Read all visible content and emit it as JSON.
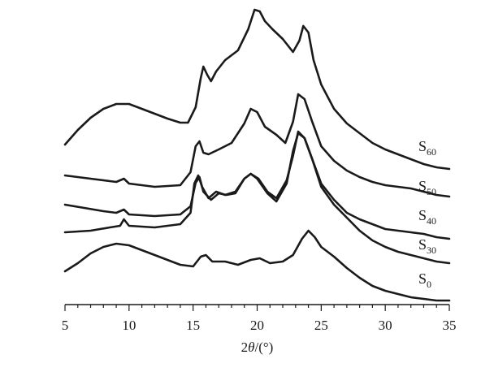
{
  "chart_data": {
    "type": "line",
    "title": "",
    "xlabel_parts": [
      "2",
      "θ",
      "/(°)"
    ],
    "ylabel": "",
    "xlim": [
      5,
      35
    ],
    "xticks": [
      5,
      10,
      15,
      20,
      25,
      30,
      35
    ],
    "minor_tick_step": 1,
    "grid": false,
    "legend": "inline labels at right end of each curve",
    "series": [
      {
        "label_base": "S",
        "label_sub": "60",
        "points": [
          [
            5,
            178
          ],
          [
            6,
            160
          ],
          [
            7,
            145
          ],
          [
            8,
            134
          ],
          [
            9,
            128
          ],
          [
            10,
            128
          ],
          [
            11,
            134
          ],
          [
            12,
            140
          ],
          [
            13,
            146
          ],
          [
            14,
            151
          ],
          [
            14.6,
            151
          ],
          [
            15.2,
            132
          ],
          [
            15.6,
            96
          ],
          [
            15.8,
            82
          ],
          [
            16.1,
            92
          ],
          [
            16.4,
            100
          ],
          [
            16.8,
            88
          ],
          [
            17.5,
            74
          ],
          [
            18.5,
            62
          ],
          [
            19.3,
            36
          ],
          [
            19.8,
            12
          ],
          [
            20.2,
            14
          ],
          [
            20.6,
            26
          ],
          [
            21.2,
            36
          ],
          [
            22,
            48
          ],
          [
            22.8,
            64
          ],
          [
            23.3,
            50
          ],
          [
            23.6,
            32
          ],
          [
            24,
            40
          ],
          [
            24.4,
            74
          ],
          [
            25,
            104
          ],
          [
            26,
            134
          ],
          [
            27,
            152
          ],
          [
            28,
            164
          ],
          [
            29,
            176
          ],
          [
            30,
            184
          ],
          [
            31,
            190
          ],
          [
            32,
            196
          ],
          [
            33,
            202
          ],
          [
            34,
            206
          ],
          [
            35,
            208
          ]
        ]
      },
      {
        "label_base": "S",
        "label_sub": "50",
        "points": [
          [
            5,
            216
          ],
          [
            7,
            220
          ],
          [
            9,
            224
          ],
          [
            9.6,
            220
          ],
          [
            10,
            226
          ],
          [
            12,
            230
          ],
          [
            14,
            228
          ],
          [
            14.8,
            212
          ],
          [
            15.2,
            180
          ],
          [
            15.5,
            174
          ],
          [
            15.8,
            188
          ],
          [
            16.2,
            190
          ],
          [
            17,
            184
          ],
          [
            18,
            176
          ],
          [
            19,
            152
          ],
          [
            19.5,
            134
          ],
          [
            20,
            138
          ],
          [
            20.6,
            156
          ],
          [
            21.5,
            166
          ],
          [
            22.2,
            176
          ],
          [
            22.8,
            150
          ],
          [
            23.2,
            116
          ],
          [
            23.7,
            122
          ],
          [
            24.3,
            150
          ],
          [
            25,
            180
          ],
          [
            26,
            198
          ],
          [
            27,
            210
          ],
          [
            28,
            218
          ],
          [
            29,
            224
          ],
          [
            30,
            228
          ],
          [
            31,
            230
          ],
          [
            32,
            232
          ],
          [
            33,
            236
          ],
          [
            34,
            240
          ],
          [
            35,
            242
          ]
        ]
      },
      {
        "label_base": "S",
        "label_sub": "40",
        "points": [
          [
            5,
            252
          ],
          [
            6.5,
            256
          ],
          [
            8,
            260
          ],
          [
            9,
            262
          ],
          [
            9.6,
            258
          ],
          [
            10,
            264
          ],
          [
            12,
            266
          ],
          [
            14,
            264
          ],
          [
            14.8,
            254
          ],
          [
            15.2,
            225
          ],
          [
            15.5,
            218
          ],
          [
            15.8,
            236
          ],
          [
            16.4,
            246
          ],
          [
            17,
            238
          ],
          [
            17.6,
            240
          ],
          [
            18.3,
            238
          ],
          [
            19,
            220
          ],
          [
            19.5,
            214
          ],
          [
            20,
            220
          ],
          [
            20.8,
            238
          ],
          [
            21.5,
            248
          ],
          [
            22.3,
            226
          ],
          [
            22.8,
            186
          ],
          [
            23.2,
            164
          ],
          [
            23.7,
            170
          ],
          [
            24.3,
            196
          ],
          [
            25,
            226
          ],
          [
            26,
            246
          ],
          [
            27,
            262
          ],
          [
            28,
            270
          ],
          [
            29,
            276
          ],
          [
            30,
            282
          ],
          [
            31,
            284
          ],
          [
            32,
            286
          ],
          [
            33,
            288
          ],
          [
            34,
            292
          ],
          [
            35,
            294
          ]
        ]
      },
      {
        "label_base": "S",
        "label_sub": "30",
        "points": [
          [
            5,
            286
          ],
          [
            7,
            284
          ],
          [
            8.5,
            280
          ],
          [
            9.3,
            278
          ],
          [
            9.6,
            270
          ],
          [
            10,
            278
          ],
          [
            12,
            280
          ],
          [
            14,
            276
          ],
          [
            14.8,
            262
          ],
          [
            15.1,
            226
          ],
          [
            15.4,
            216
          ],
          [
            15.7,
            230
          ],
          [
            16.2,
            244
          ],
          [
            16.8,
            236
          ],
          [
            17.5,
            240
          ],
          [
            18.3,
            236
          ],
          [
            19,
            220
          ],
          [
            19.5,
            214
          ],
          [
            20.1,
            220
          ],
          [
            20.8,
            236
          ],
          [
            21.5,
            244
          ],
          [
            22.3,
            222
          ],
          [
            22.8,
            192
          ],
          [
            23.2,
            162
          ],
          [
            23.7,
            170
          ],
          [
            24.3,
            196
          ],
          [
            25,
            230
          ],
          [
            26,
            252
          ],
          [
            27,
            268
          ],
          [
            28,
            284
          ],
          [
            29,
            296
          ],
          [
            30,
            304
          ],
          [
            31,
            310
          ],
          [
            32,
            314
          ],
          [
            33,
            318
          ],
          [
            34,
            322
          ],
          [
            35,
            324
          ]
        ]
      },
      {
        "label_base": "S",
        "label_sub": "0",
        "points": [
          [
            5,
            334
          ],
          [
            6,
            324
          ],
          [
            7,
            312
          ],
          [
            8,
            304
          ],
          [
            9,
            300
          ],
          [
            10,
            302
          ],
          [
            11,
            308
          ],
          [
            12,
            314
          ],
          [
            13,
            320
          ],
          [
            14,
            326
          ],
          [
            15,
            328
          ],
          [
            15.6,
            316
          ],
          [
            16,
            314
          ],
          [
            16.5,
            322
          ],
          [
            17.5,
            322
          ],
          [
            18.5,
            326
          ],
          [
            19.5,
            320
          ],
          [
            20.2,
            318
          ],
          [
            21,
            324
          ],
          [
            22,
            322
          ],
          [
            22.8,
            314
          ],
          [
            23.5,
            294
          ],
          [
            24,
            284
          ],
          [
            24.5,
            292
          ],
          [
            25,
            304
          ],
          [
            26,
            316
          ],
          [
            27,
            330
          ],
          [
            28,
            342
          ],
          [
            29,
            352
          ],
          [
            30,
            358
          ],
          [
            31,
            362
          ],
          [
            32,
            366
          ],
          [
            33,
            368
          ],
          [
            34,
            370
          ],
          [
            35,
            370
          ]
        ]
      }
    ]
  }
}
